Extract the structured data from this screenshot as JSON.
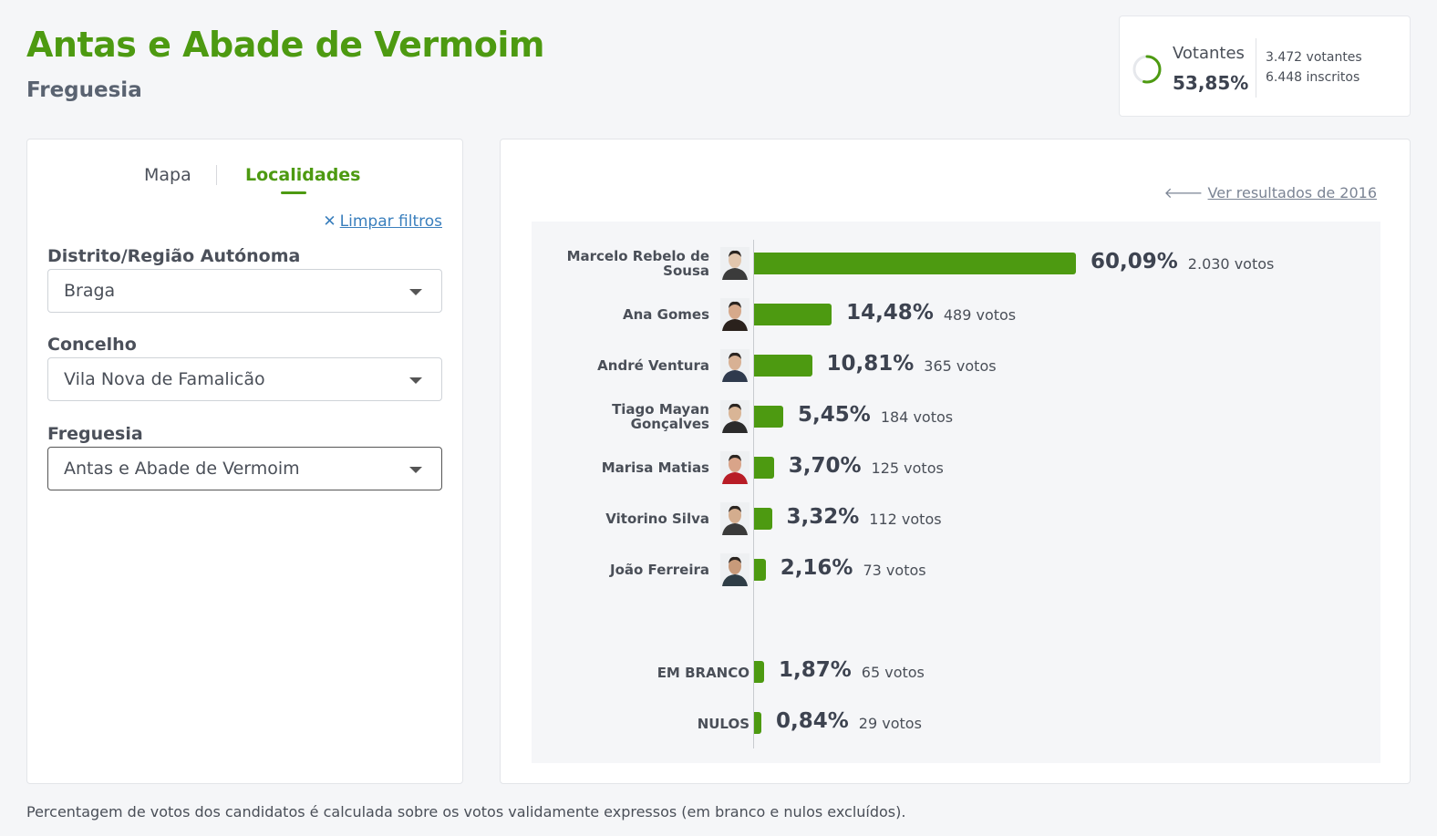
{
  "header": {
    "title": "Antas e Abade de Vermoim",
    "subtitle": "Freguesia"
  },
  "turnout": {
    "label": "Votantes",
    "percent": "53,85%",
    "percent_value": 53.85,
    "voters": "3.472 votantes",
    "registered": "6.448 inscritos"
  },
  "tabs": [
    {
      "label": "Mapa",
      "active": false
    },
    {
      "label": "Localidades",
      "active": true
    }
  ],
  "filters": {
    "clear_label": "Limpar filtros",
    "district": {
      "label": "Distrito/Região Autónoma",
      "value": "Braga"
    },
    "municipality": {
      "label": "Concelho",
      "value": "Vila Nova de Famalicão"
    },
    "parish": {
      "label": "Freguesia",
      "value": "Antas e Abade de Vermoim"
    }
  },
  "results": {
    "previous_link": "Ver resultados de 2016",
    "accent_color": "#4d9a11"
  },
  "chart_data": {
    "type": "bar",
    "categories": [
      "Marcelo Rebelo de Sousa",
      "Ana Gomes",
      "André Ventura",
      "Tiago Mayan Gonçalves",
      "Marisa Matias",
      "Vitorino Silva",
      "João Ferreira",
      "EM BRANCO",
      "NULOS"
    ],
    "values": [
      60.09,
      14.48,
      10.81,
      5.45,
      3.7,
      3.32,
      2.16,
      1.87,
      0.84
    ],
    "labels": [
      "60,09%",
      "14,48%",
      "10,81%",
      "5,45%",
      "3,70%",
      "3,32%",
      "2,16%",
      "1,87%",
      "0,84%"
    ],
    "votes": [
      "2.030 votos",
      "489 votos",
      "365 votos",
      "184 votos",
      "125 votos",
      "112 votos",
      "73 votos",
      "65 votos",
      "29 votos"
    ],
    "xlim": [
      0,
      100
    ],
    "title": "",
    "xlabel": "",
    "ylabel": ""
  },
  "footnote": "Percentagem de votos dos candidatos é calculada sobre os votos validamente expressos (em branco e nulos excluídos)."
}
